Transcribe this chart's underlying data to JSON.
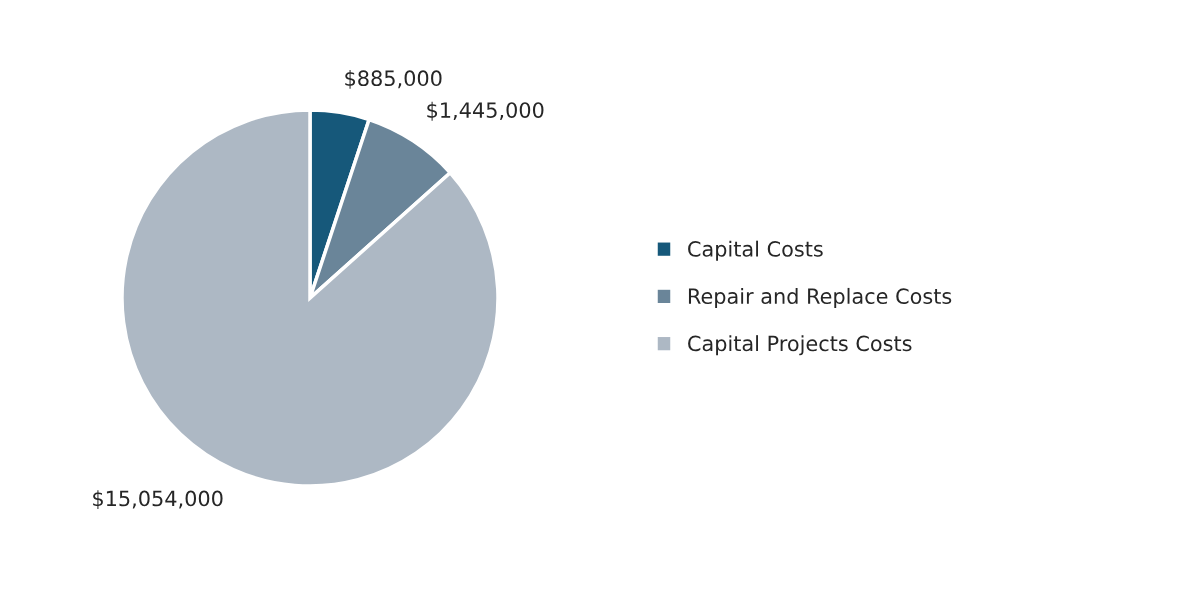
{
  "chart_data": {
    "type": "pie",
    "categories": [
      "Capital Costs",
      "Repair and Replace Costs",
      "Capital Projects Costs"
    ],
    "values": [
      885000,
      1445000,
      15054000
    ],
    "colors": [
      "#16587a",
      "#6a8599",
      "#adb8c4"
    ],
    "value_labels": [
      "$885,000",
      "$1,445,000",
      "$15,054,000"
    ],
    "legend": "right"
  }
}
